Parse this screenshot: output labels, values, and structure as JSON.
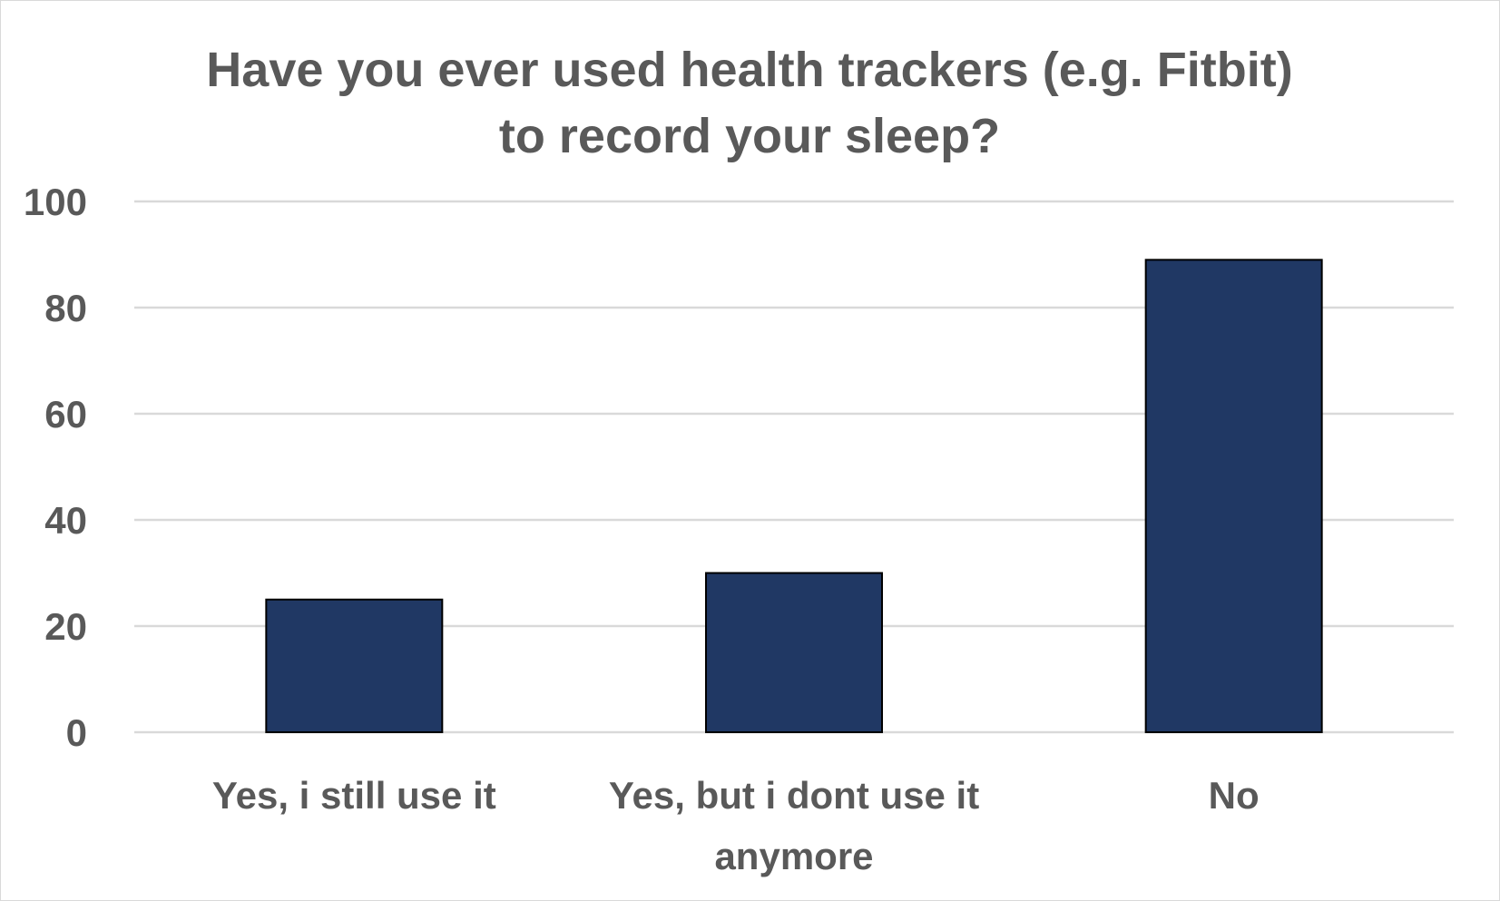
{
  "chart_data": {
    "type": "bar",
    "title": "Have you ever used health trackers (e.g. Fitbit) to record your sleep?",
    "title_lines": [
      "Have you ever used health trackers (e.g. Fitbit)",
      "to record your sleep?"
    ],
    "categories": [
      "Yes, i still use it",
      "Yes, but i dont use it anymore",
      "No"
    ],
    "category_lines": [
      [
        "Yes, i still use it"
      ],
      [
        "Yes, but i dont use it",
        "anymore"
      ],
      [
        "No"
      ]
    ],
    "values": [
      25,
      30,
      89
    ],
    "ylim": [
      0,
      100
    ],
    "yticks": [
      "0",
      "20",
      "40",
      "60",
      "80",
      "100"
    ],
    "grid": true,
    "legend": "none",
    "colors": {
      "bar_fill": "#203864",
      "bar_stroke": "#000000",
      "grid": "#d9d9d9",
      "text": "#595959",
      "border": "#d9d9d9"
    }
  }
}
